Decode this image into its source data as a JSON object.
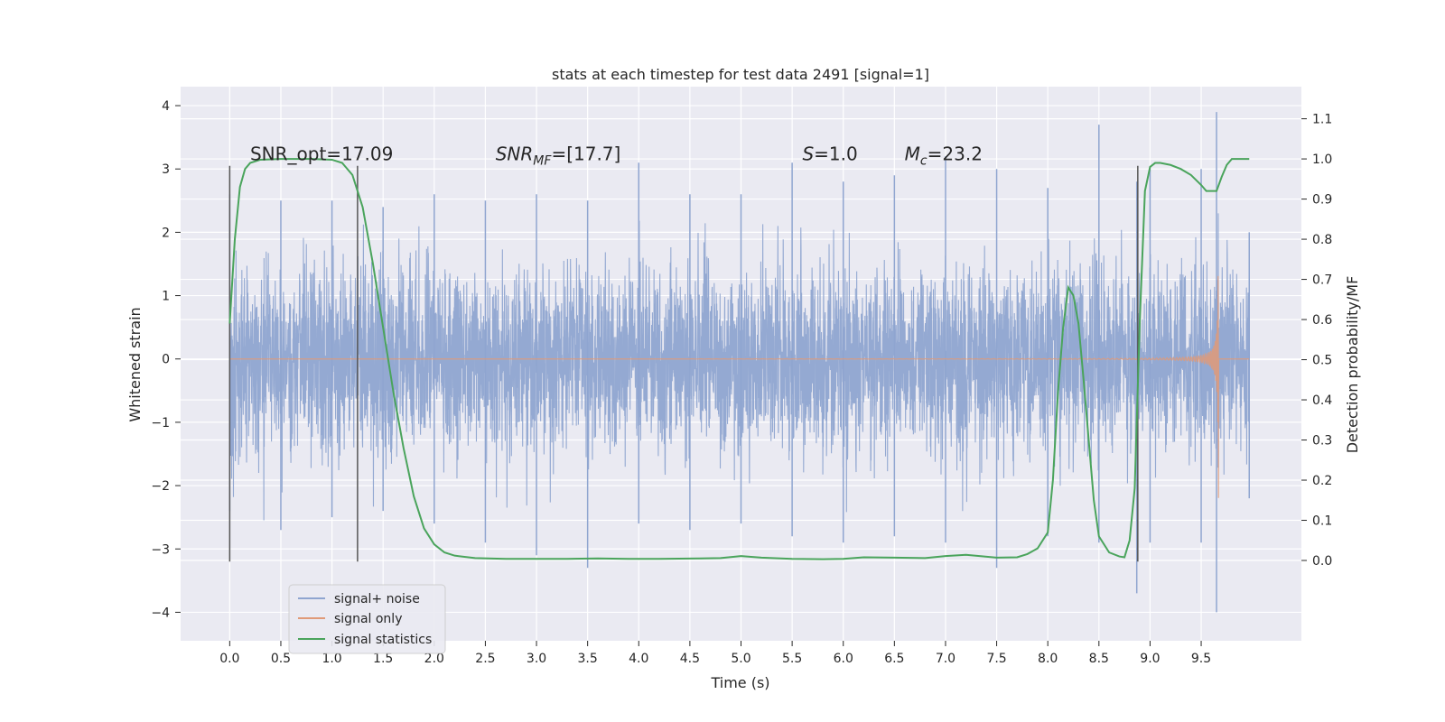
{
  "chart_data": {
    "type": "line",
    "title": "stats at each timestep for test data 2491 [signal=1]",
    "xlabel": "Time (s)",
    "ylabel_left": "Whitened strain",
    "ylabel_right": "Detection probability/MF",
    "xlim": [
      -0.48,
      10.48
    ],
    "ylim_left": [
      -4.45,
      4.3
    ],
    "ylim_right": [
      -0.2,
      1.18
    ],
    "x_ticks": [
      0.0,
      0.5,
      1.0,
      1.5,
      2.0,
      2.5,
      3.0,
      3.5,
      4.0,
      4.5,
      5.0,
      5.5,
      6.0,
      6.5,
      7.0,
      7.5,
      8.0,
      8.5,
      9.0,
      9.5
    ],
    "x_tick_labels": [
      "0.0",
      "0.5",
      "1.0",
      "1.5",
      "2.0",
      "2.5",
      "3.0",
      "3.5",
      "4.0",
      "4.5",
      "5.0",
      "5.5",
      "6.0",
      "6.5",
      "7.0",
      "7.5",
      "8.0",
      "8.5",
      "9.0",
      "9.5"
    ],
    "y_left_ticks": [
      -4,
      -3,
      -2,
      -1,
      0,
      1,
      2,
      3,
      4
    ],
    "y_left_tick_labels": [
      "−4",
      "−3",
      "−2",
      "−1",
      "0",
      "1",
      "2",
      "3",
      "4"
    ],
    "y_right_ticks": [
      0.0,
      0.1,
      0.2,
      0.3,
      0.4,
      0.5,
      0.6,
      0.7,
      0.8,
      0.9,
      1.0,
      1.1
    ],
    "y_right_tick_labels": [
      "0.0",
      "0.1",
      "0.2",
      "0.3",
      "0.4",
      "0.5",
      "0.6",
      "0.7",
      "0.8",
      "0.9",
      "1.0",
      "1.1"
    ],
    "grid": true,
    "legend_position": "lower-left",
    "series": [
      {
        "name": "signal+ noise",
        "axis": "left",
        "color": "#8fa5d0",
        "description_x_range": [
          0.0,
          9.97
        ],
        "envelope_points_t": [
          0.0,
          0.5,
          1.0,
          1.5,
          2.0,
          2.5,
          3.0,
          3.5,
          4.0,
          4.5,
          5.0,
          5.5,
          6.0,
          6.5,
          7.0,
          7.5,
          8.0,
          8.5,
          8.87,
          9.0,
          9.5,
          9.65,
          9.97
        ],
        "peaks_up": [
          2.6,
          2.5,
          2.5,
          2.4,
          2.6,
          2.5,
          2.6,
          2.5,
          3.1,
          2.6,
          2.6,
          3.1,
          2.8,
          2.9,
          3.2,
          3.0,
          2.7,
          3.7,
          2.8,
          3.0,
          3.0,
          3.9,
          2.0
        ],
        "peaks_down": [
          -2.4,
          -2.7,
          -2.5,
          -2.4,
          -2.6,
          -2.9,
          -3.1,
          -3.3,
          -2.6,
          -2.7,
          -2.6,
          -2.8,
          -2.9,
          -2.8,
          -2.9,
          -3.3,
          -2.8,
          -2.9,
          -3.7,
          -2.9,
          -2.9,
          -4.0,
          -2.2
        ]
      },
      {
        "name": "signal only",
        "axis": "left",
        "color": "#e09a78",
        "chirp_start_t": 4.5,
        "chirp_end_t": 9.67,
        "peak_amplitude": 3.1
      },
      {
        "name": "signal statistics",
        "axis": "right",
        "color": "#4aa45c",
        "x": [
          0.0,
          0.05,
          0.1,
          0.15,
          0.2,
          0.3,
          0.5,
          0.8,
          1.0,
          1.1,
          1.2,
          1.3,
          1.4,
          1.5,
          1.6,
          1.7,
          1.8,
          1.9,
          2.0,
          2.1,
          2.2,
          2.4,
          2.7,
          3.0,
          3.3,
          3.6,
          3.9,
          4.2,
          4.6,
          4.8,
          5.0,
          5.2,
          5.5,
          5.8,
          6.0,
          6.2,
          6.5,
          6.8,
          7.0,
          7.2,
          7.5,
          7.7,
          7.8,
          7.9,
          8.0,
          8.05,
          8.1,
          8.15,
          8.2,
          8.25,
          8.3,
          8.35,
          8.4,
          8.45,
          8.5,
          8.6,
          8.7,
          8.75,
          8.8,
          8.85,
          8.9,
          8.95,
          9.0,
          9.05,
          9.1,
          9.2,
          9.3,
          9.4,
          9.5,
          9.55,
          9.6,
          9.65,
          9.7,
          9.75,
          9.8,
          9.9,
          9.97
        ],
        "y": [
          0.59,
          0.8,
          0.93,
          0.975,
          0.99,
          0.998,
          1.0,
          1.0,
          0.998,
          0.99,
          0.96,
          0.88,
          0.74,
          0.58,
          0.42,
          0.28,
          0.16,
          0.08,
          0.04,
          0.02,
          0.012,
          0.006,
          0.004,
          0.004,
          0.004,
          0.005,
          0.004,
          0.004,
          0.005,
          0.006,
          0.011,
          0.007,
          0.004,
          0.003,
          0.004,
          0.008,
          0.007,
          0.006,
          0.011,
          0.014,
          0.007,
          0.008,
          0.016,
          0.03,
          0.07,
          0.2,
          0.42,
          0.58,
          0.68,
          0.66,
          0.59,
          0.45,
          0.3,
          0.15,
          0.06,
          0.02,
          0.01,
          0.008,
          0.05,
          0.18,
          0.6,
          0.92,
          0.98,
          0.99,
          0.99,
          0.985,
          0.975,
          0.96,
          0.935,
          0.92,
          0.92,
          0.92,
          0.955,
          0.985,
          1.0,
          1.0,
          1.0
        ]
      }
    ],
    "vertical_markers": {
      "color": "#555555",
      "x": [
        0.0,
        1.25,
        8.88
      ],
      "y_extent": [
        -3.2,
        3.05
      ]
    },
    "annotations": [
      {
        "id": "snr-opt",
        "text": "SNR_opt=17.09",
        "x": 0.2,
        "y": 3.05
      },
      {
        "id": "snr-mf",
        "text": "SNR",
        "sub": "MF",
        "rest": "=[17.7]",
        "italic_main": true,
        "x": 2.6,
        "y": 3.05
      },
      {
        "id": "s-value",
        "text": "S",
        "rest": "=1.0",
        "italic_main": true,
        "x": 5.6,
        "y": 3.05
      },
      {
        "id": "mc-value",
        "text": "M",
        "sub": "c",
        "rest": "=23.2",
        "italic_main": true,
        "x": 6.6,
        "y": 3.05
      }
    ]
  }
}
